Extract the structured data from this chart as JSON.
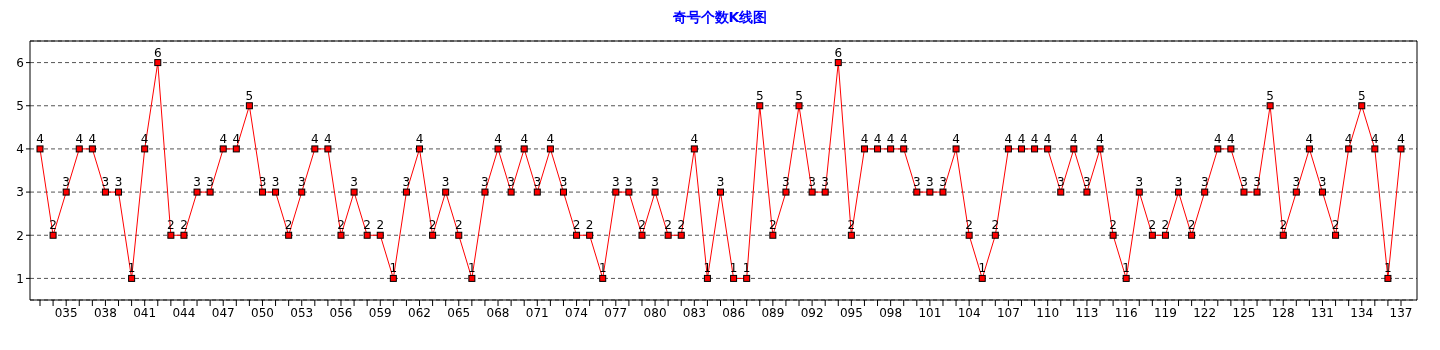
{
  "chart_data": {
    "type": "line",
    "title": "奇号个数K线图",
    "categories": [
      null,
      null,
      "035",
      null,
      null,
      "038",
      null,
      null,
      "041",
      null,
      null,
      "044",
      null,
      null,
      "047",
      null,
      null,
      "050",
      null,
      null,
      "053",
      null,
      null,
      "056",
      null,
      null,
      "059",
      null,
      null,
      "062",
      null,
      null,
      "065",
      null,
      null,
      "068",
      null,
      null,
      "071",
      null,
      null,
      "074",
      null,
      null,
      "077",
      null,
      null,
      "080",
      null,
      null,
      "083",
      null,
      null,
      "086",
      null,
      null,
      "089",
      null,
      null,
      "092",
      null,
      null,
      "095",
      null,
      null,
      "098",
      null,
      null,
      "101",
      null,
      null,
      "104",
      null,
      null,
      "107",
      null,
      null,
      "110",
      null,
      null,
      "113",
      null,
      null,
      "116",
      null,
      null,
      "119",
      null,
      null,
      "122",
      null,
      null,
      "125",
      null,
      null,
      "128",
      null,
      null,
      "131",
      null,
      null,
      "134",
      null,
      null,
      "137"
    ],
    "series": [
      {
        "color": "#ff0000",
        "values": [
          4,
          2,
          3,
          4,
          4,
          3,
          3,
          1,
          4,
          6,
          2,
          2,
          3,
          3,
          4,
          4,
          5,
          3,
          3,
          2,
          3,
          4,
          4,
          2,
          3,
          2,
          2,
          1,
          3,
          4,
          2,
          3,
          2,
          1,
          3,
          4,
          3,
          4,
          3,
          4,
          3,
          2,
          2,
          1,
          3,
          3,
          2,
          3,
          2,
          2,
          4,
          1,
          3,
          1,
          1,
          5,
          2,
          3,
          5,
          3,
          3,
          6,
          2,
          4,
          4,
          4,
          4,
          3,
          3,
          3,
          4,
          2,
          1,
          2,
          4,
          4,
          4,
          4,
          3,
          4,
          3,
          4,
          2,
          1,
          3,
          2,
          2,
          3,
          2,
          3,
          4,
          4,
          3,
          3,
          5,
          2,
          3,
          4,
          3,
          2,
          4,
          5,
          4,
          1,
          4
        ]
      }
    ],
    "ylim": [
      0.5,
      6.5
    ],
    "yticks": [
      1,
      2,
      3,
      4,
      5,
      6
    ],
    "grid": "y",
    "data_labels": true,
    "marker": "square",
    "line_style": "solid",
    "legend": false
  }
}
